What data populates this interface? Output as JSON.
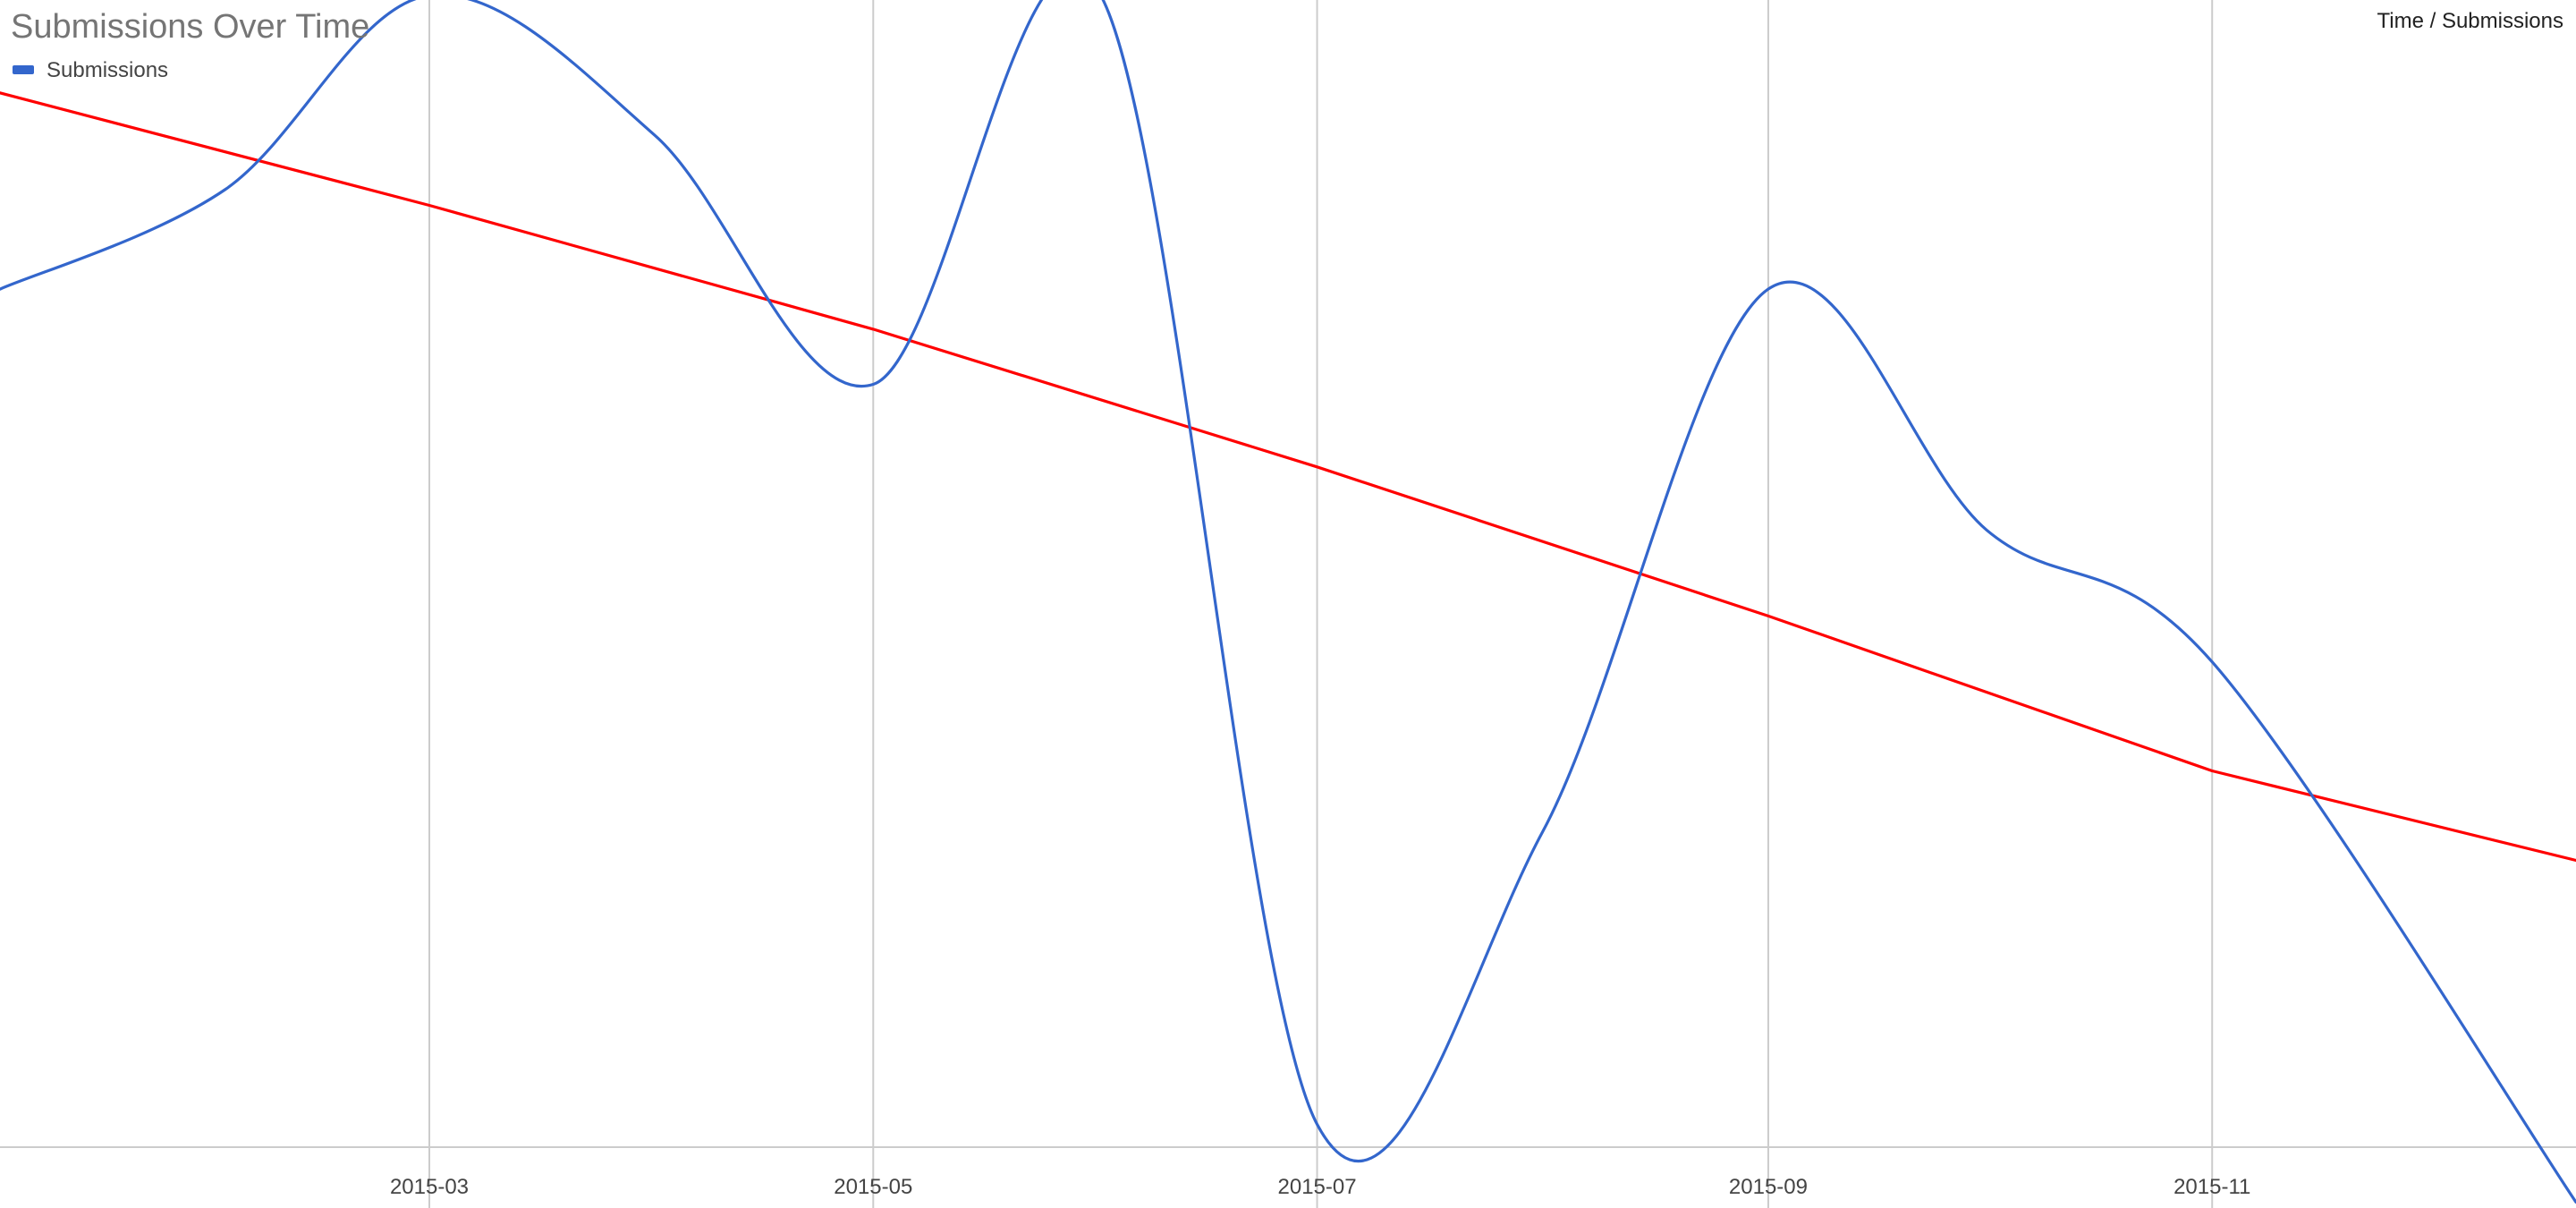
{
  "chart_data": {
    "type": "line",
    "title": "Submissions Over Time",
    "corner_label": "Time / Submissions",
    "xlabel": "",
    "ylabel": "",
    "x_ticks": [
      "2015-03",
      "2015-05",
      "2015-07",
      "2015-09",
      "2015-11"
    ],
    "xlim": [
      "2015-01-01",
      "2015-12-21"
    ],
    "ylim": [
      0,
      100
    ],
    "grid": {
      "vertical": true,
      "horizontal": false
    },
    "legend": {
      "position": "top-left",
      "entries": [
        "Submissions"
      ]
    },
    "series": [
      {
        "name": "Submissions",
        "color": "#3366cc",
        "smooth": true,
        "points": [
          {
            "x": "2015-01-01",
            "y": 74.8
          },
          {
            "x": "2015-02-01",
            "y": 83.5
          },
          {
            "x": "2015-03-01",
            "y": 100.4
          },
          {
            "x": "2015-04-01",
            "y": 88.2
          },
          {
            "x": "2015-05-01",
            "y": 66.5
          },
          {
            "x": "2015-06-01",
            "y": 100.7
          },
          {
            "x": "2015-07-01",
            "y": 2.0
          },
          {
            "x": "2015-08-01",
            "y": 27.5
          },
          {
            "x": "2015-09-01",
            "y": 74.8
          },
          {
            "x": "2015-10-01",
            "y": 53.8
          },
          {
            "x": "2015-11-01",
            "y": 42.3
          },
          {
            "x": "2015-12-21",
            "y": -4.8
          }
        ]
      },
      {
        "name": "",
        "color": "#ff0000",
        "smooth": false,
        "points": [
          {
            "x": "2015-01-01",
            "y": 91.9
          },
          {
            "x": "2015-03-01",
            "y": 82.1
          },
          {
            "x": "2015-05-01",
            "y": 71.3
          },
          {
            "x": "2015-07-01",
            "y": 59.3
          },
          {
            "x": "2015-09-01",
            "y": 46.3
          },
          {
            "x": "2015-11-01",
            "y": 32.8
          },
          {
            "x": "2015-12-21",
            "y": 25.0
          }
        ]
      }
    ]
  }
}
